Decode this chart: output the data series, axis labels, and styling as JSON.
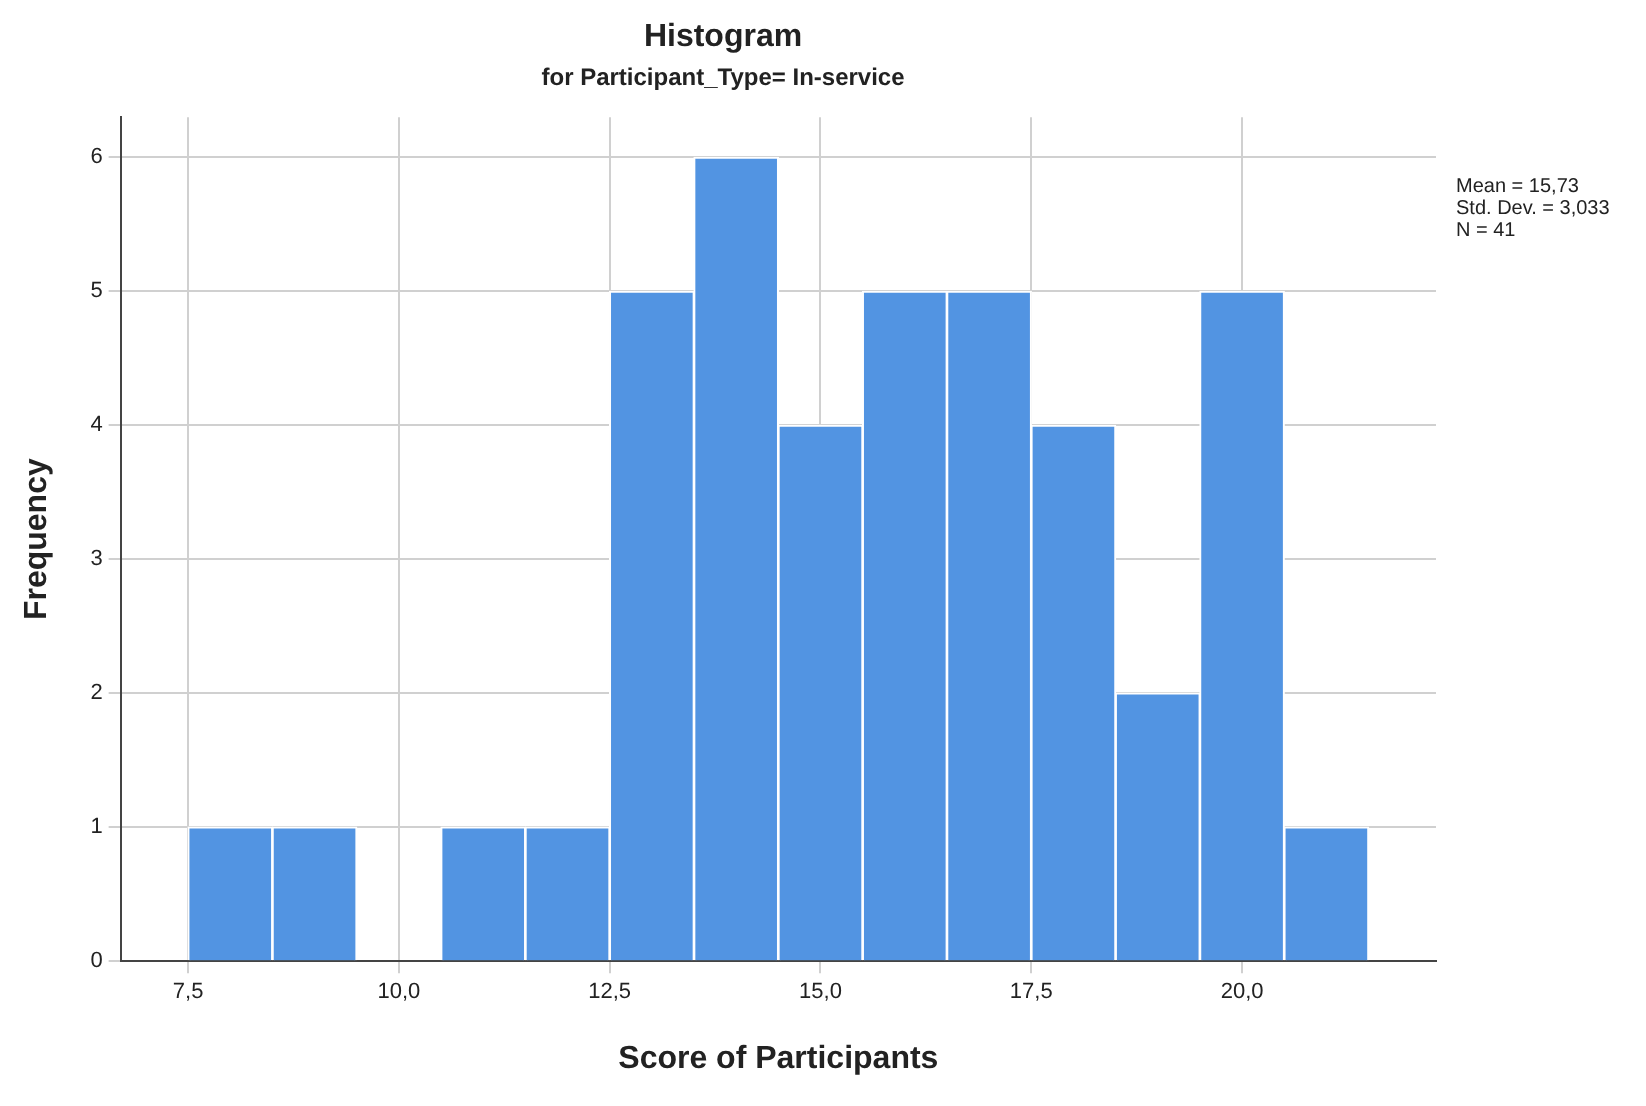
{
  "chart_data": {
    "type": "histogram",
    "title": "Histogram",
    "subtitle": "for Participant_Type= In-service",
    "xlabel": "Score of Participants",
    "ylabel": "Frequency",
    "bins": [
      7.5,
      8.5,
      9.5,
      10.5,
      11.5,
      12.5,
      13.5,
      14.5,
      15.5,
      16.5,
      17.5,
      18.5,
      19.5,
      20.5,
      21.5
    ],
    "values": [
      1,
      1,
      0,
      1,
      1,
      5,
      6,
      4,
      5,
      5,
      4,
      2,
      5,
      1
    ],
    "color": "#5294e2",
    "xlim": [
      6.7,
      22.3
    ],
    "xticks": [
      {
        "value": 7.5,
        "label": "7,5"
      },
      {
        "value": 10,
        "label": "10,0"
      },
      {
        "value": 12.5,
        "label": "12,5"
      },
      {
        "value": 15,
        "label": "15,0"
      },
      {
        "value": 17.5,
        "label": "17,5"
      },
      {
        "value": 20,
        "label": "20,0"
      }
    ],
    "ylim": [
      0,
      6.3
    ],
    "yticks": [
      0,
      1,
      2,
      3,
      4,
      5,
      6
    ],
    "grid": true,
    "annotations": [
      "Mean = 15,73",
      "Std. Dev. = 3,033",
      "N = 41"
    ]
  }
}
